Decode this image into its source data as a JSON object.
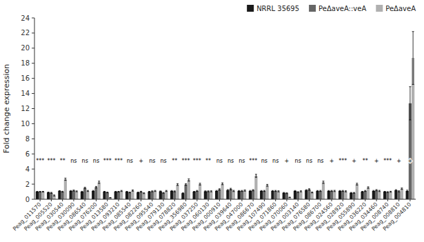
{
  "chart_data": {
    "type": "bar",
    "y_label": "Fold change expression",
    "categories": [
      "Peag_011570",
      "Peag_005520",
      "Peag_030540",
      "Peag_030090",
      "Peag_086540",
      "Peag_076200",
      "Peag_013580",
      "Peag_093210",
      "Peag_085540",
      "Peag_082260",
      "Peag_095540",
      "Peag_079130",
      "Peag_078820",
      "Peag_356980",
      "Peag_037250",
      "Peag_060130",
      "Peag_000910",
      "Peag_039640",
      "Peag_047000",
      "Peag_086670",
      "Peag_107490",
      "Peag_071860",
      "Peag_070060",
      "Peag_003140",
      "Peag_076580",
      "Peag_086700",
      "Peag_024560",
      "Peag_028920",
      "Peag_055890",
      "Peag_036220",
      "Peag_034460",
      "Peag_008740",
      "Peag_008810",
      "Peag_004810"
    ],
    "series": [
      {
        "name": "NRRL 35695",
        "color": "#1a1a1a",
        "values": [
          1.0,
          0.9,
          1.1,
          1.1,
          1.0,
          1.1,
          1.0,
          1.0,
          1.0,
          0.9,
          1.0,
          1.05,
          1.1,
          0.8,
          1.0,
          1.05,
          1.1,
          1.2,
          1.1,
          1.1,
          1.1,
          1.1,
          0.85,
          1.1,
          1.2,
          1.1,
          1.1,
          1.1,
          0.85,
          1.0,
          1.1,
          1.0,
          1.2,
          1.1
        ],
        "errors": [
          0.05,
          0.05,
          0.05,
          0.06,
          0.06,
          0.07,
          0.05,
          0.05,
          0.05,
          0.05,
          0.05,
          0.05,
          0.06,
          0.05,
          0.05,
          0.06,
          0.07,
          0.08,
          0.06,
          0.07,
          0.06,
          0.06,
          0.05,
          0.06,
          0.07,
          0.06,
          0.06,
          0.06,
          0.05,
          0.05,
          0.07,
          0.05,
          0.07,
          0.1
        ]
      },
      {
        "name": "PeΔaveA::veA",
        "color": "#666666",
        "values": [
          1.0,
          0.85,
          1.0,
          1.15,
          1.5,
          1.6,
          0.9,
          1.0,
          0.9,
          1.0,
          1.05,
          0.85,
          1.05,
          1.95,
          1.1,
          1.05,
          1.3,
          1.35,
          1.1,
          1.2,
          1.1,
          1.1,
          0.8,
          0.95,
          1.3,
          1.1,
          1.1,
          1.1,
          0.85,
          1.1,
          1.2,
          0.95,
          1.05,
          12.7
        ],
        "errors": [
          0.05,
          0.06,
          0.06,
          0.07,
          0.09,
          0.1,
          0.05,
          0.05,
          0.05,
          0.06,
          0.06,
          0.05,
          0.06,
          0.1,
          0.07,
          0.06,
          0.09,
          0.1,
          0.07,
          0.08,
          0.07,
          0.07,
          0.05,
          0.06,
          0.09,
          0.07,
          0.07,
          0.07,
          0.05,
          0.07,
          0.08,
          0.06,
          0.07,
          2.2
        ]
      },
      {
        "name": "PeΔaveA",
        "color": "#b0b0b0",
        "values": [
          1.0,
          0.5,
          2.65,
          1.05,
          1.1,
          2.25,
          0.2,
          1.1,
          1.15,
          0.8,
          1.1,
          1.1,
          1.95,
          2.55,
          2.0,
          1.05,
          2.05,
          1.1,
          1.15,
          3.1,
          1.85,
          1.05,
          0.25,
          1.05,
          0.9,
          2.25,
          1.1,
          1.05,
          2.0,
          1.55,
          1.1,
          1.0,
          1.4,
          18.7
        ],
        "errors": [
          0.05,
          0.07,
          0.15,
          0.06,
          0.07,
          0.15,
          0.03,
          0.07,
          0.08,
          0.05,
          0.07,
          0.07,
          0.12,
          0.15,
          0.12,
          0.07,
          0.12,
          0.08,
          0.08,
          0.2,
          0.12,
          0.07,
          0.03,
          0.07,
          0.06,
          0.15,
          0.08,
          0.07,
          0.12,
          0.1,
          0.08,
          0.06,
          0.09,
          3.5
        ]
      }
    ],
    "annotations": [
      {
        "text": "***",
        "y": 4.8
      },
      {
        "text": "***",
        "y": 4.8
      },
      {
        "text": "**",
        "y": 4.8
      },
      {
        "text": "ns",
        "y": 4.8
      },
      {
        "text": "ns",
        "y": 4.8
      },
      {
        "text": "ns",
        "y": 4.8
      },
      {
        "text": "***",
        "y": 4.8
      },
      {
        "text": "***",
        "y": 4.8
      },
      {
        "text": "ns",
        "y": 4.8
      },
      {
        "text": "+",
        "y": 4.8
      },
      {
        "text": "ns",
        "y": 4.8
      },
      {
        "text": "ns",
        "y": 4.8
      },
      {
        "text": "**",
        "y": 4.8
      },
      {
        "text": "***",
        "y": 4.8
      },
      {
        "text": "***",
        "y": 4.8
      },
      {
        "text": "**",
        "y": 4.8
      },
      {
        "text": "ns",
        "y": 4.8
      },
      {
        "text": "ns",
        "y": 4.8
      },
      {
        "text": "ns",
        "y": 4.8
      },
      {
        "text": "***",
        "y": 4.8
      },
      {
        "text": "ns",
        "y": 4.8
      },
      {
        "text": "ns",
        "y": 4.8
      },
      {
        "text": "+",
        "y": 4.8
      },
      {
        "text": "ns",
        "y": 4.8
      },
      {
        "text": "ns",
        "y": 4.8
      },
      {
        "text": "ns",
        "y": 4.8
      },
      {
        "text": "+",
        "y": 4.8
      },
      {
        "text": "***",
        "y": 4.8
      },
      {
        "text": "+",
        "y": 4.8
      },
      {
        "text": "**",
        "y": 4.8
      },
      {
        "text": "+",
        "y": 4.8
      },
      {
        "text": "***",
        "y": 4.8
      },
      {
        "text": "+",
        "y": 4.8
      },
      {
        "text": "+",
        "y": 4.8
      }
    ],
    "ylim": [
      0,
      24
    ],
    "yticks": [
      0,
      2,
      4,
      6,
      8,
      10,
      12,
      14,
      16,
      18,
      20,
      22,
      24
    ],
    "grid": false,
    "legend": "top"
  }
}
